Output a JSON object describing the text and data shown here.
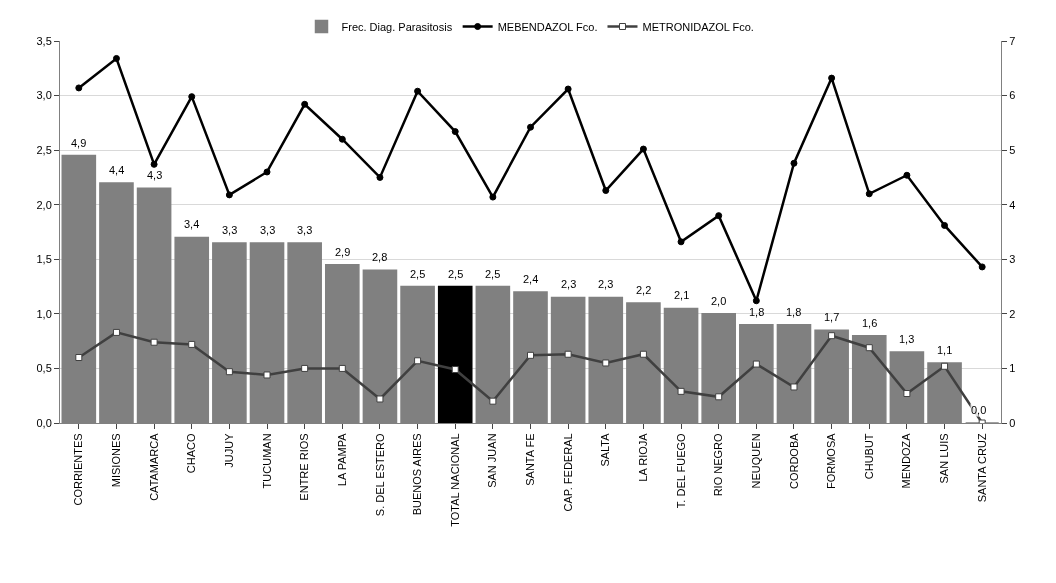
{
  "chart_data": {
    "type": "bar",
    "categories": [
      "CORRIENTES",
      "MISIONES",
      "CATAMARCA",
      "CHACO",
      "JUJUY",
      "TUCUMAN",
      "ENTRE RIOS",
      "LA PAMPA",
      "S. DEL ESTERO",
      "BUENOS AIRES",
      "TOTAL NACIONAL",
      "SAN JUAN",
      "SANTA FE",
      "CAP. FEDERAL",
      "SALTA",
      "LA RIOJA",
      "T. DEL FUEGO",
      "RIO NEGRO",
      "NEUQUEN",
      "CORDOBA",
      "FORMOSA",
      "CHUBUT",
      "MENDOZA",
      "SAN LUIS",
      "SANTA CRUZ"
    ],
    "series": [
      {
        "name": "Frec. Diag. Parasitosis",
        "axis": "y2",
        "color": "#808080",
        "colors": [
          null,
          null,
          null,
          null,
          null,
          null,
          null,
          null,
          null,
          null,
          "#000000",
          null,
          null,
          null,
          null,
          null,
          null,
          null,
          null,
          null,
          null,
          null,
          null,
          null,
          null
        ],
        "values": [
          4.9,
          4.4,
          4.3,
          3.4,
          3.3,
          3.3,
          3.3,
          2.9,
          2.8,
          2.5,
          2.5,
          2.5,
          2.4,
          2.3,
          2.3,
          2.2,
          2.1,
          2.0,
          1.8,
          1.8,
          1.7,
          1.6,
          1.3,
          1.1,
          0.0
        ],
        "value_labels": [
          "4,9",
          "4,4",
          "4,3",
          "3,4",
          "3,3",
          "3,3",
          "3,3",
          "2,9",
          "2,8",
          "2,5",
          "2,5",
          "2,5",
          "2,4",
          "2,3",
          "2,3",
          "2,2",
          "2,1",
          "2,0",
          "1,8",
          "1,8",
          "1,7",
          "1,6",
          "1,3",
          "1,1",
          "0,0"
        ]
      },
      {
        "name": "MEBENDAZOL Fco.",
        "type": "line",
        "color": "#000000",
        "marker": "circle",
        "values": [
          3.07,
          3.34,
          2.37,
          2.99,
          2.09,
          2.3,
          2.92,
          2.6,
          2.25,
          3.04,
          2.67,
          2.07,
          2.71,
          3.06,
          2.13,
          2.51,
          1.66,
          1.9,
          1.12,
          2.38,
          3.16,
          2.1,
          2.27,
          1.81,
          1.43
        ]
      },
      {
        "name": "METRONIDAZOL Fco.",
        "type": "line",
        "color": "#404040",
        "marker": "square",
        "values": [
          0.6,
          0.83,
          0.74,
          0.72,
          0.47,
          0.44,
          0.5,
          0.5,
          0.22,
          0.57,
          0.49,
          0.2,
          0.62,
          0.63,
          0.55,
          0.63,
          0.29,
          0.24,
          0.54,
          0.33,
          0.8,
          0.69,
          0.27,
          0.52,
          0.0
        ]
      }
    ],
    "ylim": [
      0,
      3.5
    ],
    "yticks": [
      {
        "value": 0,
        "label": "0,0"
      },
      {
        "value": 0.5,
        "label": "0,5"
      },
      {
        "value": 1,
        "label": "1,0"
      },
      {
        "value": 1.5,
        "label": "1,5"
      },
      {
        "value": 2,
        "label": "2,0"
      },
      {
        "value": 2.5,
        "label": "2,5"
      },
      {
        "value": 3,
        "label": "3,0"
      },
      {
        "value": 3.5,
        "label": "3,5"
      }
    ],
    "y2lim": [
      0,
      7
    ],
    "y2ticks": [
      0,
      1,
      2,
      3,
      4,
      5,
      6,
      7
    ],
    "grid": "y",
    "legend": "top"
  }
}
